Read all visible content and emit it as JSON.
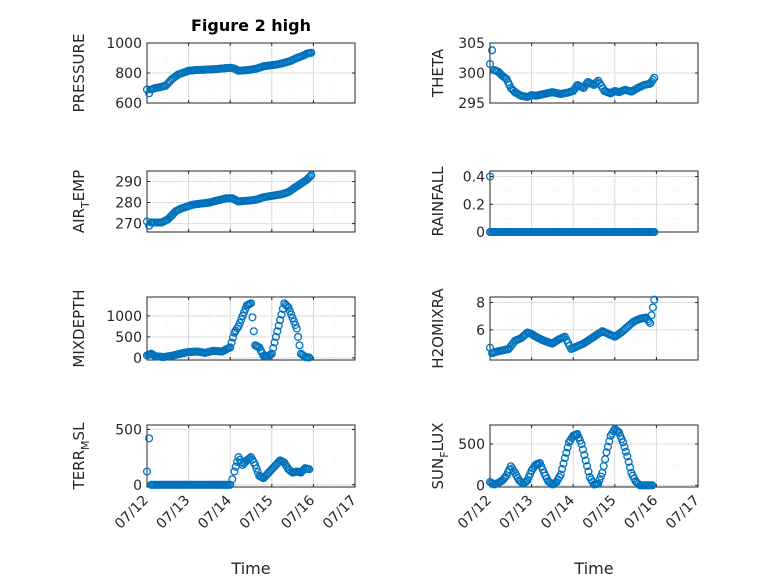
{
  "figure": {
    "title": "Figure 2 high",
    "xlabel": "Time",
    "marker_color": "#0072BD",
    "x_ticks": [
      "07/12",
      "07/13",
      "07/14",
      "07/15",
      "07/16",
      "07/17"
    ]
  },
  "chart_data": [
    {
      "type": "scatter",
      "ylabel_main": "PRESSURE",
      "ylabel_sub": "",
      "ylabel_tail": "",
      "ylim": [
        600,
        1000
      ],
      "yticks": [
        "600",
        "800",
        "1000"
      ],
      "ytick_values": [
        600,
        800,
        1000
      ],
      "xlim": [
        0,
        5
      ],
      "grid": true,
      "marker": "circle-open",
      "x": [
        0.0,
        0.05,
        0.1,
        0.2,
        0.3,
        0.45,
        0.6,
        0.75,
        0.9,
        1.0,
        1.2,
        1.4,
        1.6,
        1.8,
        2.0,
        2.1,
        2.2,
        2.35,
        2.5,
        2.65,
        2.8,
        2.9,
        3.0,
        3.15,
        3.3,
        3.45,
        3.6,
        3.75,
        3.85,
        3.95
      ],
      "y": [
        690,
        665,
        690,
        700,
        705,
        715,
        760,
        790,
        805,
        815,
        820,
        822,
        825,
        830,
        835,
        830,
        815,
        818,
        822,
        830,
        845,
        848,
        852,
        858,
        868,
        880,
        900,
        915,
        930,
        935
      ]
    },
    {
      "type": "scatter",
      "ylabel_main": "THETA",
      "ylabel_sub": "",
      "ylabel_tail": "",
      "ylim": [
        295,
        305
      ],
      "yticks": [
        "295",
        "300",
        "305"
      ],
      "ytick_values": [
        295,
        300,
        305
      ],
      "xlim": [
        0,
        5
      ],
      "grid": true,
      "marker": "circle-open",
      "x": [
        0.0,
        0.05,
        0.1,
        0.2,
        0.3,
        0.4,
        0.5,
        0.6,
        0.75,
        0.9,
        1.0,
        1.1,
        1.3,
        1.5,
        1.7,
        1.85,
        2.0,
        2.1,
        2.25,
        2.35,
        2.5,
        2.6,
        2.75,
        2.9,
        3.0,
        3.1,
        3.25,
        3.4,
        3.55,
        3.7,
        3.85,
        3.95
      ],
      "y": [
        301.5,
        303.8,
        300.5,
        300.2,
        299.5,
        299.0,
        297.5,
        296.8,
        296.2,
        296.0,
        296.3,
        296.2,
        296.5,
        296.8,
        296.5,
        296.7,
        297.0,
        298.0,
        297.5,
        298.5,
        298.0,
        298.7,
        297.0,
        296.6,
        297.0,
        296.8,
        297.2,
        296.9,
        297.5,
        298.0,
        298.2,
        299.2
      ]
    },
    {
      "type": "scatter",
      "ylabel_main": "AIR",
      "ylabel_sub": "T",
      "ylabel_tail": "EMP",
      "ylim": [
        266,
        295
      ],
      "yticks": [
        "270",
        "280",
        "290"
      ],
      "ytick_values": [
        270,
        280,
        290
      ],
      "xlim": [
        0,
        5
      ],
      "grid": true,
      "marker": "circle-open",
      "x": [
        0.0,
        0.05,
        0.1,
        0.2,
        0.35,
        0.5,
        0.6,
        0.7,
        0.8,
        0.95,
        1.1,
        1.3,
        1.5,
        1.7,
        1.9,
        2.05,
        2.2,
        2.35,
        2.5,
        2.65,
        2.8,
        2.95,
        3.1,
        3.25,
        3.4,
        3.55,
        3.7,
        3.85,
        3.95
      ],
      "y": [
        271,
        269,
        270.5,
        270.5,
        270.5,
        272,
        274,
        276,
        277,
        278,
        279,
        279.5,
        280,
        281,
        282,
        282,
        280.5,
        280.8,
        281,
        281.5,
        282.5,
        283,
        283.5,
        284,
        285,
        287,
        289,
        291,
        293
      ]
    },
    {
      "type": "scatter",
      "ylabel_main": "RAINFALL",
      "ylabel_sub": "",
      "ylabel_tail": "",
      "ylim": [
        0,
        0.44
      ],
      "yticks": [
        "0",
        "0.2",
        "0.4"
      ],
      "ytick_values": [
        0,
        0.2,
        0.4
      ],
      "xlim": [
        0,
        5
      ],
      "grid": true,
      "marker": "circle-open",
      "x": [
        0.0,
        0.0,
        0.25,
        0.5,
        0.75,
        1.0,
        1.25,
        1.5,
        1.75,
        2.0,
        2.25,
        2.5,
        2.75,
        3.0,
        3.25,
        3.5,
        3.75,
        3.95
      ],
      "y": [
        0.4,
        0,
        0,
        0,
        0,
        0,
        0,
        0,
        0,
        0,
        0,
        0,
        0,
        0,
        0,
        0,
        0,
        0
      ]
    },
    {
      "type": "scatter",
      "ylabel_main": "MIXDEPTH",
      "ylabel_sub": "",
      "ylabel_tail": "",
      "ylim": [
        -50,
        1450
      ],
      "yticks": [
        "0",
        "500",
        "1000"
      ],
      "ytick_values": [
        0,
        500,
        1000
      ],
      "xlim": [
        0,
        5
      ],
      "grid": true,
      "marker": "circle-open",
      "x": [
        0.0,
        0.1,
        0.2,
        0.4,
        0.6,
        0.8,
        1.0,
        1.2,
        1.4,
        1.6,
        1.8,
        2.0,
        2.1,
        2.2,
        2.3,
        2.4,
        2.5,
        2.6,
        2.7,
        2.8,
        2.9,
        3.0,
        3.1,
        3.2,
        3.3,
        3.4,
        3.5,
        3.6,
        3.7,
        3.8,
        3.9
      ],
      "y": [
        60,
        100,
        40,
        20,
        50,
        100,
        140,
        150,
        120,
        170,
        150,
        250,
        600,
        750,
        1000,
        1250,
        1300,
        300,
        250,
        50,
        40,
        100,
        500,
        900,
        1300,
        1200,
        950,
        700,
        100,
        20,
        10
      ]
    },
    {
      "type": "scatter",
      "ylabel_main": "H2OMIXRA",
      "ylabel_sub": "",
      "ylabel_tail": "",
      "ylim": [
        3.8,
        8.4
      ],
      "yticks": [
        "6",
        "8"
      ],
      "ytick_values": [
        6,
        8
      ],
      "xlim": [
        0,
        5
      ],
      "grid": true,
      "marker": "circle-open",
      "x": [
        0.0,
        0.05,
        0.15,
        0.3,
        0.45,
        0.6,
        0.75,
        0.9,
        1.0,
        1.1,
        1.3,
        1.5,
        1.65,
        1.8,
        1.95,
        2.1,
        2.25,
        2.4,
        2.55,
        2.7,
        2.85,
        3.0,
        3.15,
        3.3,
        3.45,
        3.6,
        3.75,
        3.85,
        3.95
      ],
      "y": [
        4.7,
        4.3,
        4.4,
        4.5,
        4.6,
        5.2,
        5.4,
        5.8,
        5.7,
        5.5,
        5.2,
        5.0,
        5.3,
        5.5,
        4.6,
        4.8,
        5.0,
        5.3,
        5.6,
        5.9,
        5.7,
        5.5,
        5.8,
        6.2,
        6.6,
        6.8,
        6.9,
        6.5,
        8.2
      ]
    },
    {
      "type": "scatter",
      "ylabel_main": "TERR",
      "ylabel_sub": "M",
      "ylabel_tail": "SL",
      "ylim": [
        -20,
        540
      ],
      "yticks": [
        "0",
        "500"
      ],
      "ytick_values": [
        0,
        500
      ],
      "xlim": [
        0,
        5
      ],
      "grid": true,
      "marker": "circle-open",
      "x": [
        0.0,
        0.05,
        0.1,
        0.3,
        0.5,
        0.75,
        1.0,
        1.25,
        1.5,
        1.75,
        2.0,
        2.05,
        2.1,
        2.2,
        2.3,
        2.4,
        2.5,
        2.6,
        2.7,
        2.8,
        2.9,
        3.0,
        3.1,
        3.2,
        3.3,
        3.4,
        3.5,
        3.6,
        3.7,
        3.8,
        3.9
      ],
      "y": [
        120,
        420,
        0,
        0,
        0,
        0,
        0,
        0,
        0,
        0,
        0,
        50,
        120,
        250,
        180,
        220,
        250,
        180,
        80,
        60,
        100,
        140,
        180,
        220,
        200,
        140,
        110,
        120,
        110,
        150,
        140
      ]
    },
    {
      "type": "scatter",
      "ylabel_main": "SUN",
      "ylabel_sub": "F",
      "ylabel_tail": "LUX",
      "ylim": [
        -20,
        730
      ],
      "yticks": [
        "0",
        "500"
      ],
      "ytick_values": [
        0,
        500
      ],
      "xlim": [
        0,
        5
      ],
      "grid": true,
      "marker": "circle-open",
      "x": [
        0.0,
        0.1,
        0.2,
        0.3,
        0.4,
        0.5,
        0.6,
        0.7,
        0.8,
        0.9,
        1.0,
        1.1,
        1.2,
        1.3,
        1.4,
        1.5,
        1.6,
        1.7,
        1.8,
        1.9,
        2.0,
        2.1,
        2.2,
        2.3,
        2.4,
        2.5,
        2.6,
        2.7,
        2.8,
        2.9,
        3.0,
        3.1,
        3.2,
        3.3,
        3.4,
        3.5,
        3.6,
        3.7,
        3.8,
        3.9
      ],
      "y": [
        40,
        10,
        30,
        60,
        120,
        230,
        150,
        60,
        20,
        60,
        180,
        250,
        270,
        150,
        50,
        10,
        40,
        130,
        330,
        520,
        600,
        620,
        500,
        300,
        100,
        10,
        20,
        150,
        400,
        600,
        680,
        640,
        520,
        350,
        150,
        50,
        0,
        0,
        0,
        0
      ]
    }
  ]
}
